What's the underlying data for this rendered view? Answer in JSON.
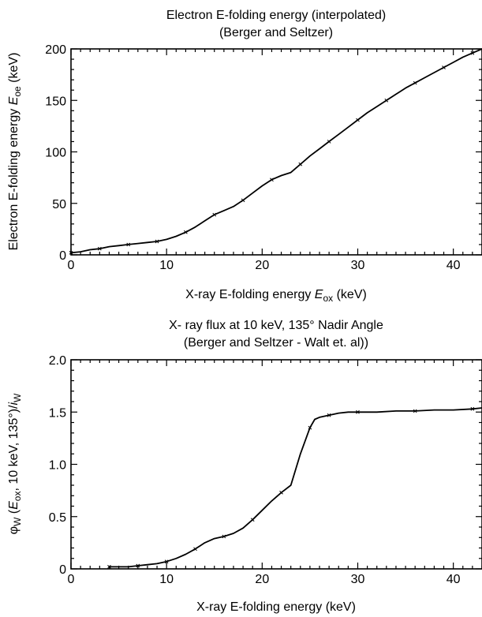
{
  "chart_data": [
    {
      "type": "line",
      "title": "Electron E-folding energy (interpolated)",
      "subtitle": "(Berger and Seltzer)",
      "ylabel_parts": [
        "Electron E-folding energy ",
        "E",
        "oe",
        " (keV)"
      ],
      "xlabel_parts": [
        "X-ray E-folding energy ",
        "E",
        "ox",
        " (keV)"
      ],
      "xlim": [
        0,
        43
      ],
      "ylim": [
        0,
        200
      ],
      "xticks": [
        0,
        10,
        20,
        30,
        40
      ],
      "yticks": [
        0,
        50,
        100,
        150,
        200
      ],
      "ytick_labels": [
        "0",
        "50",
        "100",
        "150",
        "200"
      ],
      "grid": false,
      "series": [
        {
          "x": [
            0,
            1,
            2,
            3,
            4,
            5,
            6,
            7,
            8,
            9,
            10,
            11,
            12,
            13,
            14,
            15,
            16,
            17,
            18,
            19,
            20,
            21,
            22,
            23,
            24,
            25,
            26,
            27,
            28,
            29,
            30,
            31,
            32,
            33,
            34,
            35,
            36,
            37,
            38,
            39,
            40,
            41,
            42,
            43
          ],
          "y": [
            2,
            3,
            5,
            6,
            8,
            9,
            10,
            11,
            12,
            13,
            15,
            18,
            22,
            27,
            33,
            39,
            43,
            47,
            53,
            60,
            67,
            73,
            77,
            80,
            88,
            96,
            103,
            110,
            117,
            124,
            131,
            138,
            144,
            150,
            156,
            162,
            167,
            172,
            177,
            182,
            187,
            192,
            196,
            200
          ]
        }
      ]
    },
    {
      "type": "line",
      "title": "X- ray flux at 10 keV, 135° Nadir Angle",
      "subtitle": "(Berger and Seltzer - Walt et. al))",
      "ylabel_parts": [
        "φ",
        "W",
        " (",
        "E",
        "ox",
        ", 10 keV, 135°)/",
        "i",
        "W"
      ],
      "xlabel_parts": [
        "X-ray E-folding energy  (keV)"
      ],
      "xlim": [
        0,
        43
      ],
      "ylim": [
        0,
        2.0
      ],
      "xticks": [
        0,
        10,
        20,
        30,
        40
      ],
      "yticks": [
        0,
        0.5,
        1.0,
        1.5,
        2.0
      ],
      "ytick_labels": [
        "0",
        "0.5",
        "1.0",
        "1.5",
        "2.0"
      ],
      "grid": false,
      "series": [
        {
          "x": [
            4,
            5,
            6,
            7,
            8,
            9,
            10,
            11,
            12,
            13,
            14,
            15,
            16,
            17,
            18,
            19,
            20,
            21,
            22,
            23,
            24,
            25,
            25.5,
            26,
            27,
            28,
            29,
            30,
            32,
            34,
            36,
            38,
            40,
            42,
            43
          ],
          "y": [
            0.02,
            0.02,
            0.02,
            0.03,
            0.04,
            0.05,
            0.07,
            0.1,
            0.14,
            0.19,
            0.25,
            0.29,
            0.31,
            0.34,
            0.39,
            0.47,
            0.56,
            0.65,
            0.73,
            0.8,
            1.1,
            1.35,
            1.43,
            1.45,
            1.47,
            1.49,
            1.5,
            1.5,
            1.5,
            1.51,
            1.51,
            1.52,
            1.52,
            1.53,
            1.54
          ]
        }
      ]
    }
  ]
}
